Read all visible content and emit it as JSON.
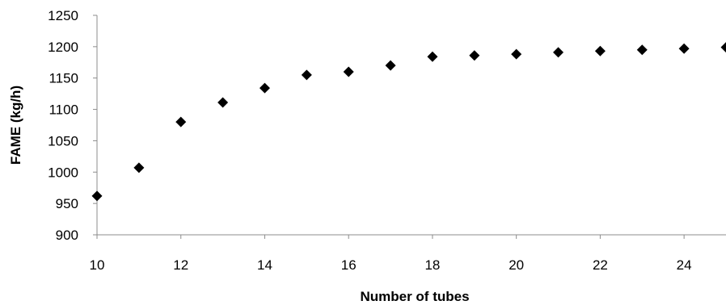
{
  "chart_data": {
    "type": "scatter",
    "title": "",
    "xlabel": "Number of tubes",
    "ylabel": "FAME (kg/h)",
    "xlim": [
      10,
      25
    ],
    "ylim": [
      900,
      1250
    ],
    "xticks": [
      "10",
      "12",
      "14",
      "16",
      "18",
      "20",
      "22",
      "24"
    ],
    "yticks": [
      "900",
      "950",
      "1000",
      "1050",
      "1100",
      "1150",
      "1200",
      "1250"
    ],
    "grid": false,
    "legend": "none",
    "marker": "diamond",
    "marker_color": "#000000",
    "series": [
      {
        "x": [
          10,
          11,
          12,
          13,
          14,
          15,
          16,
          17,
          18,
          19,
          20,
          21,
          22,
          23,
          24,
          25
        ],
        "y": [
          962,
          1007,
          1080,
          1111,
          1134,
          1155,
          1160,
          1170,
          1184,
          1186,
          1188,
          1191,
          1193,
          1195,
          1197,
          1199
        ]
      }
    ]
  }
}
